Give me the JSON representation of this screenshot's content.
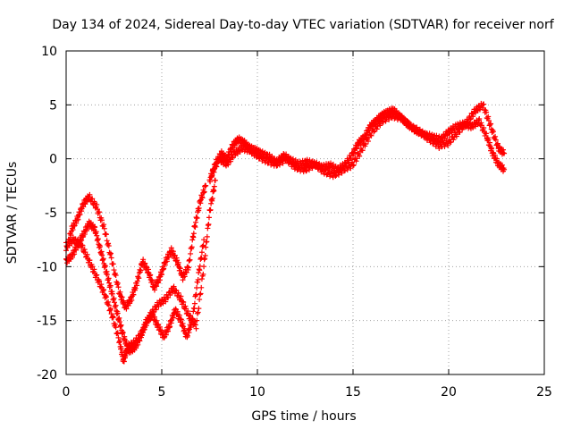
{
  "chart_data": {
    "type": "scatter",
    "title": "Day 134 of 2024, Sidereal Day-to-day VTEC variation (SDTVAR) for receiver norf",
    "xlabel": "GPS time / hours",
    "ylabel": "SDTVAR / TECUs",
    "xlim": [
      0,
      25
    ],
    "ylim": [
      -20,
      10
    ],
    "xticks": [
      0,
      5,
      10,
      15,
      20,
      25
    ],
    "yticks": [
      -20,
      -15,
      -10,
      -5,
      0,
      5,
      10
    ],
    "grid": true,
    "marker": "plus",
    "color": "#ff0000",
    "series": [
      {
        "x": [
          0.0,
          0.3,
          0.6,
          0.9,
          1.2,
          1.6,
          2.0,
          2.4,
          2.8,
          3.1,
          3.4,
          3.7,
          4.0,
          4.3,
          4.6,
          4.9,
          5.2,
          5.5,
          5.8,
          6.1,
          6.4,
          6.7,
          7.0,
          7.3
        ],
        "y": [
          -8.5,
          -6.5,
          -5.5,
          -4.2,
          -3.5,
          -4.5,
          -6.5,
          -9.5,
          -12.5,
          -13.8,
          -13.0,
          -11.5,
          -9.5,
          -10.5,
          -12.0,
          -11.0,
          -9.5,
          -8.5,
          -9.5,
          -11.0,
          -10.0,
          -6.5,
          -4.0,
          -2.5
        ]
      },
      {
        "x": [
          0.0,
          0.3,
          0.6,
          0.9,
          1.2,
          1.5,
          1.8,
          2.1,
          2.4,
          2.7,
          3.0,
          3.3,
          3.6,
          3.9,
          4.2,
          4.5,
          4.8,
          5.1,
          5.4,
          5.7,
          6.0,
          6.3,
          6.6,
          6.9,
          7.2
        ],
        "y": [
          -9.5,
          -9.0,
          -8.0,
          -7.0,
          -6.0,
          -6.5,
          -8.5,
          -10.5,
          -12.5,
          -14.5,
          -16.5,
          -17.8,
          -17.5,
          -16.5,
          -15.0,
          -14.5,
          -15.5,
          -16.5,
          -15.5,
          -14.0,
          -15.0,
          -16.5,
          -15.0,
          -11.0,
          -7.5
        ]
      },
      {
        "x": [
          0.0,
          0.4,
          0.8,
          1.2,
          1.6,
          2.0,
          2.4,
          2.8,
          3.0,
          3.2,
          3.6,
          4.0,
          4.4,
          4.8,
          5.2,
          5.6,
          6.0,
          6.4,
          6.8,
          7.2,
          7.5,
          7.8
        ],
        "y": [
          -8.0,
          -7.5,
          -8.0,
          -9.5,
          -11.0,
          -12.5,
          -14.5,
          -17.0,
          -18.8,
          -17.5,
          -17.0,
          -16.0,
          -14.5,
          -13.5,
          -13.0,
          -12.0,
          -13.0,
          -14.5,
          -15.5,
          -10.0,
          -5.0,
          -2.0
        ]
      },
      {
        "x": [
          7.5,
          7.8,
          8.1,
          8.4,
          8.7,
          9.0,
          9.3,
          9.6,
          9.9,
          10.2,
          10.6,
          11.0,
          11.4,
          11.8,
          12.2,
          12.6,
          13.0,
          13.4,
          13.8,
          14.2,
          14.6,
          15.0,
          15.3,
          15.6,
          15.9,
          16.2,
          16.5,
          16.8,
          17.1,
          17.4,
          17.7,
          18.0,
          18.4,
          18.8,
          19.2,
          19.6,
          20.0,
          20.4,
          20.8,
          21.2,
          21.6,
          22.0,
          22.3,
          22.6,
          22.9
        ],
        "y": [
          -2.0,
          -0.5,
          0.5,
          0.0,
          1.2,
          1.8,
          1.5,
          1.0,
          0.8,
          0.5,
          0.2,
          -0.3,
          0.3,
          -0.2,
          -0.5,
          -0.3,
          -0.5,
          -0.8,
          -0.6,
          -1.0,
          -0.5,
          0.5,
          1.5,
          2.0,
          3.0,
          3.5,
          4.0,
          4.3,
          4.5,
          4.0,
          3.5,
          3.0,
          2.5,
          2.2,
          2.0,
          1.8,
          2.5,
          3.0,
          3.2,
          3.0,
          3.5,
          2.0,
          0.5,
          -0.5,
          -1.0
        ]
      },
      {
        "x": [
          7.6,
          8.0,
          8.4,
          8.8,
          9.2,
          9.6,
          10.0,
          10.5,
          11.0,
          11.5,
          12.0,
          12.5,
          13.0,
          13.5,
          14.0,
          14.5,
          15.0,
          15.5,
          16.0,
          16.5,
          17.0,
          17.5,
          18.0,
          18.5,
          19.0,
          19.5,
          20.0,
          20.5,
          21.0,
          21.4,
          21.8,
          22.2,
          22.6,
          22.9
        ],
        "y": [
          -1.5,
          0.0,
          -0.5,
          0.5,
          1.0,
          0.8,
          0.3,
          -0.2,
          -0.5,
          0.0,
          -0.8,
          -1.0,
          -0.5,
          -1.2,
          -1.5,
          -1.0,
          -0.5,
          1.0,
          2.5,
          3.5,
          4.0,
          3.8,
          3.0,
          2.5,
          1.8,
          1.2,
          1.5,
          2.5,
          3.5,
          4.5,
          5.0,
          3.0,
          1.0,
          0.5
        ]
      }
    ]
  }
}
